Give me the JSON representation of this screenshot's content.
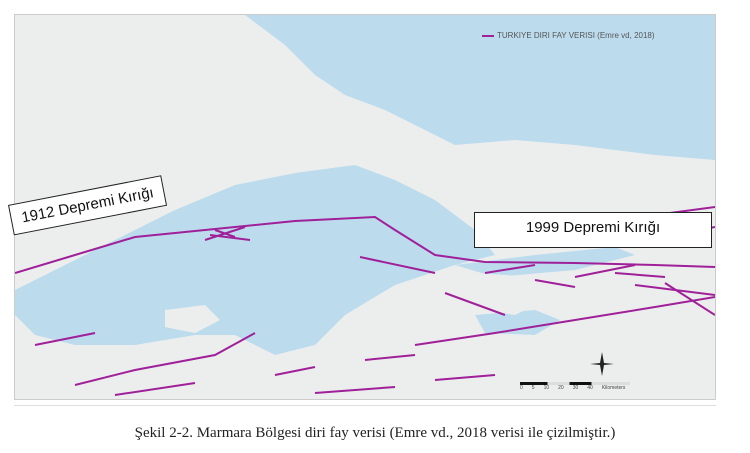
{
  "legend": {
    "label": "TURKIYE DIRI FAY VERISI (Emre vd, 2018)",
    "color": "#a0209a"
  },
  "labels": {
    "rupture_1912": "1912 Depremi Kırığı",
    "rupture_1999": "1999 Depremi Kırığı"
  },
  "scale": {
    "ticks": [
      "0",
      "5",
      "10",
      "20",
      "30",
      "40"
    ],
    "unit": "Kilometers"
  },
  "colors": {
    "sea": "#bcdcee",
    "land": "#eceeed",
    "fault": "#a0209a"
  },
  "caption": "Şekil 2-2. Marmara Bölgesi diri fay verisi (Emre vd., 2018 verisi ile çizilmiştir.)"
}
